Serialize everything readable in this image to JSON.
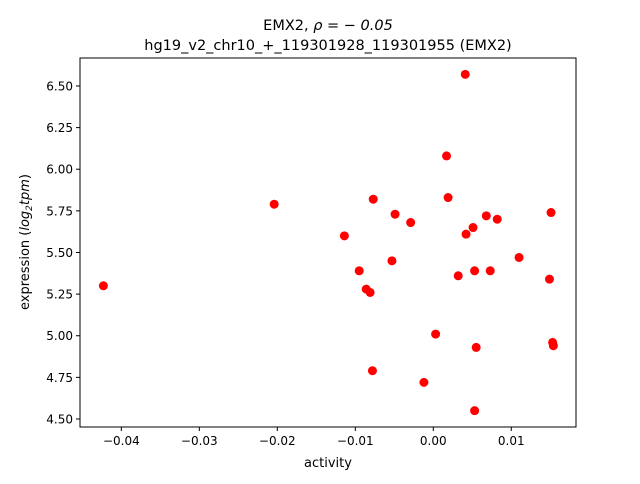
{
  "chart_data": {
    "type": "scatter",
    "title_line1_prefix": "EMX2, ",
    "title_line1_rho": "ρ = − 0.05",
    "title_line2": "hg19_v2_chr10_+_119301928_119301955 (EMX2)",
    "xlabel": "activity",
    "ylabel_prefix": "expression (",
    "ylabel_math": "log",
    "ylabel_sub": "2",
    "ylabel_math2": "tpm",
    "ylabel_suffix": ")",
    "xlim": [
      -0.0453,
      0.0183
    ],
    "ylim": [
      4.452,
      6.668
    ],
    "xticks": [
      -0.04,
      -0.03,
      -0.02,
      -0.01,
      0.0,
      0.01
    ],
    "xtick_labels": [
      "−0.04",
      "−0.03",
      "−0.02",
      "−0.01",
      "0.00",
      "0.01"
    ],
    "yticks": [
      4.5,
      4.75,
      5.0,
      5.25,
      5.5,
      5.75,
      6.0,
      6.25,
      6.5
    ],
    "ytick_labels": [
      "4.50",
      "4.75",
      "5.00",
      "5.25",
      "5.50",
      "5.75",
      "6.00",
      "6.25",
      "6.50"
    ],
    "grid": false,
    "marker_color": "#ff0000",
    "points": [
      [
        -0.0423,
        5.3
      ],
      [
        -0.0204,
        5.79
      ],
      [
        -0.0114,
        5.6
      ],
      [
        -0.0095,
        5.39
      ],
      [
        -0.0086,
        5.28
      ],
      [
        -0.0081,
        5.26
      ],
      [
        -0.0077,
        5.82
      ],
      [
        -0.0078,
        4.79
      ],
      [
        -0.0053,
        5.45
      ],
      [
        -0.0049,
        5.73
      ],
      [
        -0.0029,
        5.68
      ],
      [
        -0.0012,
        4.72
      ],
      [
        0.0003,
        5.01
      ],
      [
        0.0017,
        6.08
      ],
      [
        0.0019,
        5.83
      ],
      [
        0.0041,
        6.57
      ],
      [
        0.0042,
        5.61
      ],
      [
        0.0032,
        5.36
      ],
      [
        0.0051,
        5.65
      ],
      [
        0.0053,
        5.39
      ],
      [
        0.0055,
        4.93
      ],
      [
        0.0053,
        4.55
      ],
      [
        0.0068,
        5.72
      ],
      [
        0.0073,
        5.39
      ],
      [
        0.0082,
        5.7
      ],
      [
        0.011,
        5.47
      ],
      [
        0.0151,
        5.74
      ],
      [
        0.0149,
        5.34
      ],
      [
        0.0153,
        4.96
      ],
      [
        0.0154,
        4.94
      ]
    ]
  }
}
